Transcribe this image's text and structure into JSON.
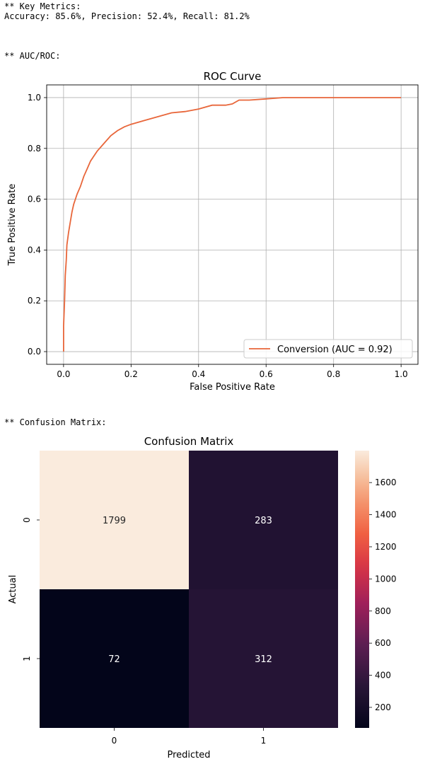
{
  "output": {
    "metrics_header": "** Key Metrics:",
    "metrics_line": "Accuracy: 85.6%, Precision: 52.4%, Recall: 81.2%",
    "auc_header": "** AUC/ROC:",
    "cm_header": "** Confusion Matrix:"
  },
  "colors": {
    "roc_line": "#e8663a",
    "grid": "#b0b0b0",
    "cm_cmap_low": "#03051a",
    "cm_cmap_high": "#faebdd"
  },
  "chart_data": [
    {
      "type": "line",
      "title": "ROC Curve",
      "xlabel": "False Positive Rate",
      "ylabel": "True Positive Rate",
      "xlim": [
        -0.05,
        1.05
      ],
      "ylim": [
        -0.05,
        1.05
      ],
      "xticks": [
        "0.0",
        "0.2",
        "0.4",
        "0.6",
        "0.8",
        "1.0"
      ],
      "yticks": [
        "0.0",
        "0.2",
        "0.4",
        "0.6",
        "0.8",
        "1.0"
      ],
      "grid": true,
      "legend_position": "lower-right",
      "series": [
        {
          "name": "Conversion (AUC = 0.92)",
          "x": [
            0,
            0,
            0.003,
            0.005,
            0.008,
            0.01,
            0.015,
            0.02,
            0.025,
            0.03,
            0.035,
            0.04,
            0.05,
            0.06,
            0.07,
            0.08,
            0.09,
            0.1,
            0.12,
            0.14,
            0.16,
            0.18,
            0.2,
            0.24,
            0.28,
            0.32,
            0.36,
            0.4,
            0.44,
            0.48,
            0.5,
            0.52,
            0.55,
            0.6,
            0.65,
            0.7,
            0.8,
            0.9,
            1.0
          ],
          "y": [
            0,
            0.1,
            0.2,
            0.3,
            0.36,
            0.42,
            0.47,
            0.51,
            0.55,
            0.58,
            0.6,
            0.62,
            0.65,
            0.69,
            0.72,
            0.75,
            0.77,
            0.79,
            0.82,
            0.85,
            0.87,
            0.885,
            0.895,
            0.91,
            0.925,
            0.94,
            0.945,
            0.955,
            0.97,
            0.97,
            0.975,
            0.99,
            0.99,
            0.995,
            1.0,
            1.0,
            1.0,
            1.0,
            1.0
          ]
        }
      ]
    },
    {
      "type": "heatmap",
      "title": "Confusion Matrix",
      "xlabel": "Predicted",
      "ylabel": "Actual",
      "x_categories": [
        "0",
        "1"
      ],
      "y_categories": [
        "0",
        "1"
      ],
      "values": [
        [
          1799,
          283
        ],
        [
          72,
          312
        ]
      ],
      "colorbar_range": [
        72,
        1799
      ],
      "colorbar_ticks": [
        "200",
        "400",
        "600",
        "800",
        "1000",
        "1200",
        "1400",
        "1600"
      ]
    }
  ]
}
